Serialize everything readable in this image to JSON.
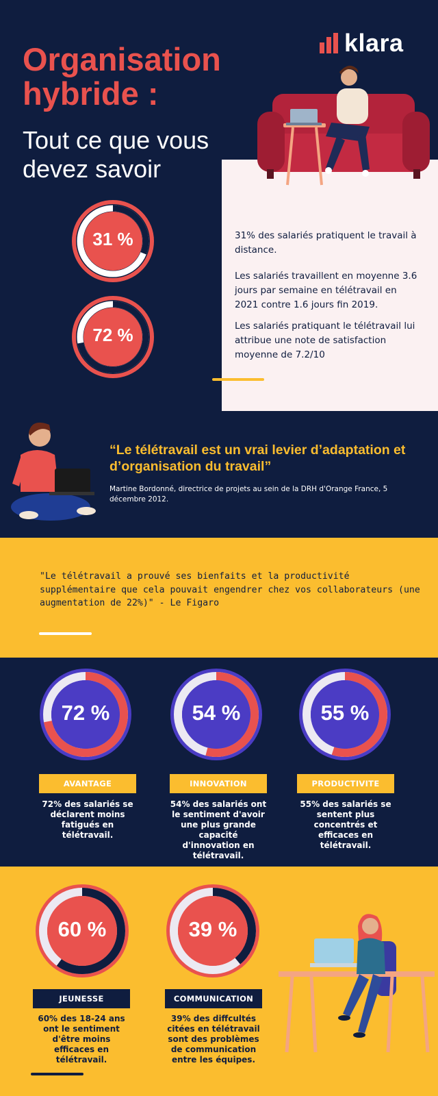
{
  "brand": {
    "name": "klara",
    "accent": "#e9524e",
    "navy": "#0f1d3f",
    "yellow": "#fbbd2f",
    "purple": "#4b3cc4"
  },
  "header": {
    "title_line1": "Organisation",
    "title_line2": "hybride :",
    "subtitle": "Tout ce que vous devez savoir"
  },
  "intro_stats": [
    {
      "label": "31 %",
      "value": 31
    },
    {
      "label": "72 %",
      "value": 72
    }
  ],
  "facts": [
    "31% des salariés pratiquent le travail à distance.",
    "Les salariés travaillent en moyenne 3.6 jours par semaine en télétravail en 2021 contre 1.6 jours fin 2019.",
    "Les salariés pratiquant le télétravail lui attribue une note de satisfaction moyenne de 7.2/10"
  ],
  "quote": {
    "text": "“Le télétravail est un vrai levier d’adaptation et d’organisation du travail”",
    "author": "Martine Bordonné, directrice de projets au sein de la DRH d'Orange France, 5 décembre 2012."
  },
  "figaro_quote": "\"Le télétravail a prouvé ses bienfaits et la productivité supplémentaire que cela pouvait engendrer chez vos collaborateurs (une augmentation de 22%)\" - Le Figaro",
  "benefits": [
    {
      "label": "72 %",
      "value": 72,
      "tag": "AVANTAGE",
      "desc": "72% des salariés se déclarent moins fatigués en télétravail."
    },
    {
      "label": "54 %",
      "value": 54,
      "tag": "INNOVATION",
      "desc": "54% des salariés ont le sentiment d'avoir une plus grande capacité d'innovation en télétravail."
    },
    {
      "label": "55 %",
      "value": 55,
      "tag": "PRODUCTIVITE",
      "desc": "55% des salariés se sentent plus concentrés et efficaces en télétravail."
    }
  ],
  "challenges": [
    {
      "label": "60 %",
      "value": 60,
      "tag": "JEUNESSE",
      "desc": "60% des 18-24 ans ont le sentiment d'être moins efficaces en télétravail."
    },
    {
      "label": "39 %",
      "value": 39,
      "tag": "COMMUNICATION",
      "desc": "39% des diffcultés citées en télétravail sont des problèmes de communication entre les équipes."
    }
  ]
}
